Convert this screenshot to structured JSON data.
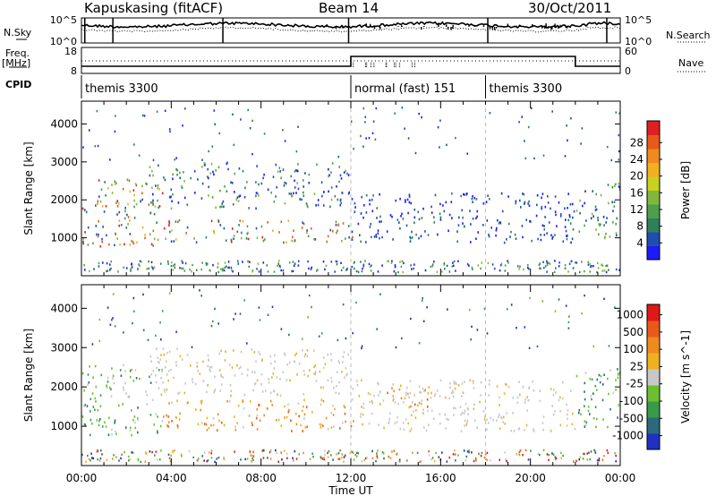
{
  "header": {
    "station": "Kapuskasing (fitACF)",
    "beam": "Beam 14",
    "date": "30/Oct/2011"
  },
  "side_labels": {
    "nsky": "N.Sky",
    "nsearch": "N.Search",
    "freq_line1": "Freq.",
    "freq_line2": "[MHz]",
    "nave": "Nave",
    "cpid": "CPID"
  },
  "top_strip_ticks": {
    "nsky_left": [
      "10^5",
      "10^0"
    ],
    "nsearch_right": [
      "10^5",
      "10^0"
    ],
    "freq_left": [
      "18",
      "8"
    ],
    "nave_right": [
      "60",
      "0"
    ]
  },
  "cpid_segments": [
    {
      "label": "themis 3300",
      "start_hour": 0,
      "end_hour": 12
    },
    {
      "label": "normal (fast) 151",
      "start_hour": 12,
      "end_hour": 18
    },
    {
      "label": "themis 3300",
      "start_hour": 18,
      "end_hour": 24
    }
  ],
  "chart_data": [
    {
      "type": "heatmap",
      "title": "",
      "xlabel": "Time UT",
      "ylabel": "Slant Range [km]",
      "x_ticks": [
        "00:00",
        "04:00",
        "08:00",
        "12:00",
        "16:00",
        "20:00",
        "00:00"
      ],
      "xlim_hours": [
        0,
        24
      ],
      "y_ticks": [
        1000,
        2000,
        3000,
        4000
      ],
      "ylim": [
        0,
        4600
      ],
      "colorbar": {
        "label": "Power [dB]",
        "ticks": [
          4,
          8,
          12,
          16,
          20,
          24,
          28
        ],
        "colors": [
          "#1b1bff",
          "#1e4fb0",
          "#2f7f5a",
          "#4d9f4d",
          "#7fb83a",
          "#c8d020",
          "#f0b020",
          "#f08a20",
          "#e85a1a",
          "#e02020"
        ]
      },
      "scatter_bands": [
        {
          "start_hour": 0.0,
          "end_hour": 3.6,
          "range_low": 800,
          "range_high": 2600,
          "level": "high"
        },
        {
          "start_hour": 3.6,
          "end_hour": 12.2,
          "range_low": 900,
          "range_high": 1500,
          "level": "high"
        },
        {
          "start_hour": 3.0,
          "end_hour": 12.0,
          "range_low": 1800,
          "range_high": 3000,
          "level": "medium"
        },
        {
          "start_hour": 12.0,
          "end_hour": 22.0,
          "range_low": 900,
          "range_high": 2200,
          "level": "low"
        },
        {
          "start_hour": 22.0,
          "end_hour": 24.0,
          "range_low": 1000,
          "range_high": 2500,
          "level": "medium"
        }
      ]
    },
    {
      "type": "heatmap",
      "title": "",
      "xlabel": "Time UT",
      "ylabel": "Slant Range [km]",
      "x_ticks": [
        "00:00",
        "04:00",
        "08:00",
        "12:00",
        "16:00",
        "20:00",
        "00:00"
      ],
      "xlim_hours": [
        0,
        24
      ],
      "y_ticks": [
        1000,
        2000,
        3000,
        4000
      ],
      "ylim": [
        0,
        4600
      ],
      "colorbar": {
        "label": "Velocity [m s^-1]",
        "ticks": [
          1000,
          500,
          100,
          25,
          -25,
          -100,
          -500,
          -1000
        ],
        "colors": [
          "#2030c0",
          "#2a6a7a",
          "#3a9a4a",
          "#6ac030",
          "#c8c8c8",
          "#f0b020",
          "#f08a20",
          "#e85a1a",
          "#e01818"
        ]
      },
      "scatter_bands": [
        {
          "start_hour": 0.0,
          "end_hour": 3.6,
          "range_low": 800,
          "range_high": 2600,
          "level": "green"
        },
        {
          "start_hour": 3.6,
          "end_hour": 12.2,
          "range_low": 900,
          "range_high": 1700,
          "level": "orange"
        },
        {
          "start_hour": 3.0,
          "end_hour": 12.0,
          "range_low": 1800,
          "range_high": 3000,
          "level": "grey"
        },
        {
          "start_hour": 12.0,
          "end_hour": 22.0,
          "range_low": 900,
          "range_high": 2200,
          "level": "grey"
        },
        {
          "start_hour": 13.0,
          "end_hour": 15.5,
          "range_low": 1500,
          "range_high": 2000,
          "level": "orange"
        },
        {
          "start_hour": 22.0,
          "end_hour": 24.0,
          "range_low": 1000,
          "range_high": 2500,
          "level": "green"
        }
      ]
    }
  ]
}
